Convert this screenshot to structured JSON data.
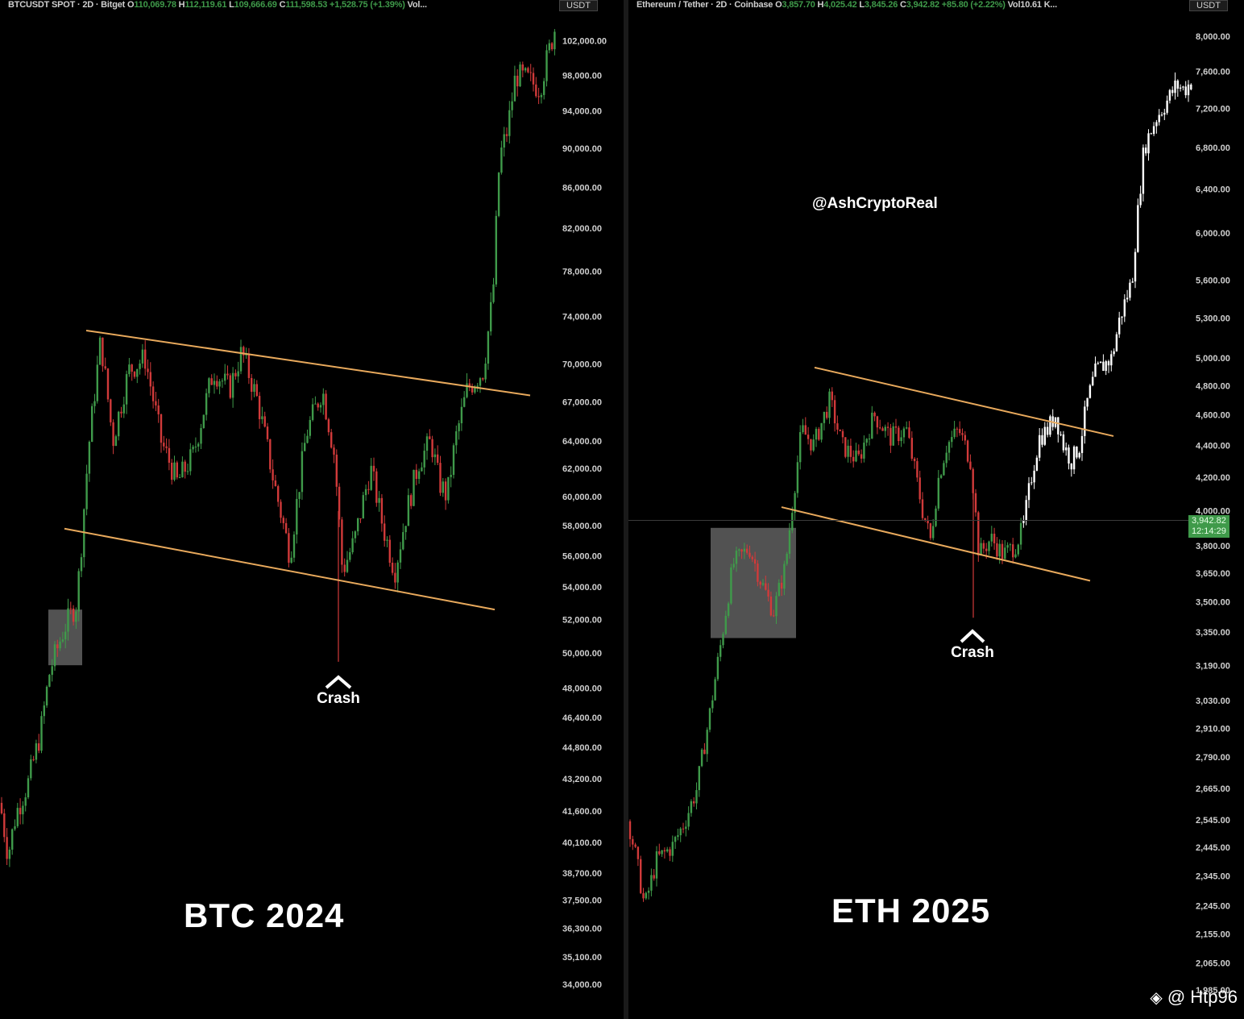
{
  "btc": {
    "legend": {
      "symbol": "BTCUSDT SPOT · 2D · Bitget",
      "o_label": "O",
      "o": "110,069.78",
      "h_label": "H",
      "h": "112,119.61",
      "l_label": "L",
      "l": "109,666.69",
      "c_label": "C",
      "c": "111,598.53",
      "change": "+1,528.75 (+1.39%)",
      "vol": "Vol..."
    },
    "unit": "USDT",
    "big_label": "BTC 2024",
    "crash_label": "Crash"
  },
  "eth": {
    "legend": {
      "symbol": "Ethereum / Tether · 2D · Coinbase",
      "o_label": "O",
      "o": "3,857.70",
      "h_label": "H",
      "h": "4,025.42",
      "l_label": "L",
      "l": "3,845.26",
      "c_label": "C",
      "c": "3,942.82",
      "change": "+85.80 (+2.22%)",
      "vol": "Vol10.61 K..."
    },
    "unit": "USDT",
    "big_label": "ETH 2025",
    "crash_label": "Crash",
    "watermark": "@AshCryptoReal",
    "last_price": "3,942.82",
    "countdown": "12:14:29"
  },
  "credit": "@ Htp96",
  "colors": {
    "up": "#3f9a4a",
    "down": "#d13a3a",
    "trend": "#e8a95c",
    "white": "#ffffff"
  },
  "chart_data": [
    {
      "type": "candlestick",
      "title": "BTC 2024",
      "ylim": [
        34000,
        104000
      ],
      "y_scale": "log",
      "y_ticks": [
        "102,000.00",
        "98,000.00",
        "94,000.00",
        "90,000.00",
        "86,000.00",
        "82,000.00",
        "78,000.00",
        "74,000.00",
        "70,000.00",
        "67,000.00",
        "64,000.00",
        "62,000.00",
        "60,000.00",
        "58,000.00",
        "56,000.00",
        "54,000.00",
        "52,000.00",
        "50,000.00",
        "48,000.00",
        "46,400.00",
        "44,800.00",
        "43,200.00",
        "41,600.00",
        "40,100.00",
        "38,700.00",
        "37,500.00",
        "36,300.00",
        "35,100.00",
        "34,000.00"
      ],
      "anchors": [
        [
          0,
          42000
        ],
        [
          10,
          39500
        ],
        [
          20,
          41500
        ],
        [
          35,
          43000
        ],
        [
          50,
          45500
        ],
        [
          62,
          49000
        ],
        [
          80,
          51500
        ],
        [
          95,
          53000
        ],
        [
          100,
          56000
        ],
        [
          110,
          63500
        ],
        [
          125,
          72000
        ],
        [
          140,
          64000
        ],
        [
          160,
          69500
        ],
        [
          180,
          70500
        ],
        [
          200,
          64000
        ],
        [
          220,
          61000
        ],
        [
          240,
          63000
        ],
        [
          265,
          69500
        ],
        [
          285,
          68000
        ],
        [
          300,
          71000
        ],
        [
          320,
          67000
        ],
        [
          340,
          61000
        ],
        [
          360,
          56000
        ],
        [
          380,
          64500
        ],
        [
          400,
          68000
        ],
        [
          415,
          63000
        ],
        [
          425,
          55000
        ],
        [
          440,
          57000
        ],
        [
          460,
          62000
        ],
        [
          475,
          58000
        ],
        [
          490,
          55000
        ],
        [
          505,
          59000
        ],
        [
          520,
          62500
        ],
        [
          535,
          64000
        ],
        [
          545,
          61000
        ],
        [
          555,
          60000
        ],
        [
          565,
          64000
        ],
        [
          580,
          68000
        ],
        [
          600,
          69500
        ],
        [
          612,
          76000
        ],
        [
          620,
          89000
        ],
        [
          630,
          92000
        ],
        [
          640,
          98000
        ],
        [
          655,
          97500
        ],
        [
          670,
          96500
        ],
        [
          690,
          104000
        ]
      ],
      "crash_low": 49500,
      "trendlines": [
        [
          [
            107,
            72800
          ],
          [
            658,
            67500
          ]
        ],
        [
          [
            80,
            57800
          ],
          [
            614,
            52600
          ]
        ]
      ],
      "consolidation_box": [
        [
          60,
          52600
        ],
        [
          102,
          49300
        ]
      ]
    },
    {
      "type": "candlestick",
      "title": "ETH 2025",
      "ylim": [
        1985,
        8000
      ],
      "y_scale": "log",
      "y_ticks": [
        "8,000.00",
        "7,600.00",
        "7,200.00",
        "6,800.00",
        "6,400.00",
        "6,000.00",
        "5,600.00",
        "5,300.00",
        "5,000.00",
        "4,800.00",
        "4,600.00",
        "4,400.00",
        "4,200.00",
        "4,000.00",
        "3,800.00",
        "3,650.00",
        "3,500.00",
        "3,350.00",
        "3,190.00",
        "3,030.00",
        "2,910.00",
        "2,790.00",
        "2,665.00",
        "2,545.00",
        "2,445.00",
        "2,345.00",
        "2,245.00",
        "2,155.00",
        "2,065.00",
        "1,985.00"
      ],
      "anchors": [
        [
          0,
          2540
        ],
        [
          10,
          2400
        ],
        [
          20,
          2240
        ],
        [
          35,
          2400
        ],
        [
          55,
          2450
        ],
        [
          70,
          2540
        ],
        [
          85,
          2665
        ],
        [
          100,
          2950
        ],
        [
          115,
          3300
        ],
        [
          130,
          3700
        ],
        [
          150,
          3790
        ],
        [
          165,
          3600
        ],
        [
          180,
          3450
        ],
        [
          195,
          3690
        ],
        [
          205,
          4100
        ],
        [
          215,
          4500
        ],
        [
          230,
          4400
        ],
        [
          250,
          4700
        ],
        [
          265,
          4400
        ],
        [
          285,
          4300
        ],
        [
          305,
          4600
        ],
        [
          325,
          4450
        ],
        [
          345,
          4500
        ],
        [
          365,
          4000
        ],
        [
          375,
          3830
        ],
        [
          385,
          4200
        ],
        [
          395,
          4400
        ],
        [
          410,
          4500
        ],
        [
          425,
          4300
        ],
        [
          435,
          3750
        ],
        [
          450,
          3840
        ],
        [
          465,
          3750
        ],
        [
          480,
          3800
        ],
        [
          490,
          3900
        ],
        [
          500,
          4200
        ],
        [
          510,
          4450
        ],
        [
          520,
          4500
        ],
        [
          530,
          4600
        ],
        [
          540,
          4400
        ],
        [
          550,
          4300
        ],
        [
          560,
          4400
        ],
        [
          570,
          4700
        ],
        [
          580,
          4900
        ],
        [
          600,
          5000
        ],
        [
          610,
          5300
        ],
        [
          625,
          5600
        ],
        [
          630,
          6000
        ],
        [
          640,
          6800
        ],
        [
          655,
          7100
        ],
        [
          670,
          7300
        ],
        [
          680,
          7450
        ],
        [
          690,
          7400
        ],
        [
          700,
          7500
        ]
      ],
      "crash_low": 3420,
      "trendlines": [
        [
          [
            1011,
            4930
          ],
          [
            1382,
            4460
          ]
        ],
        [
          [
            970,
            4020
          ],
          [
            1353,
            3610
          ]
        ]
      ],
      "consolidation_box": [
        [
          882,
          3900
        ],
        [
          988,
          3320
        ]
      ],
      "white_candles_start": 490
    }
  ]
}
